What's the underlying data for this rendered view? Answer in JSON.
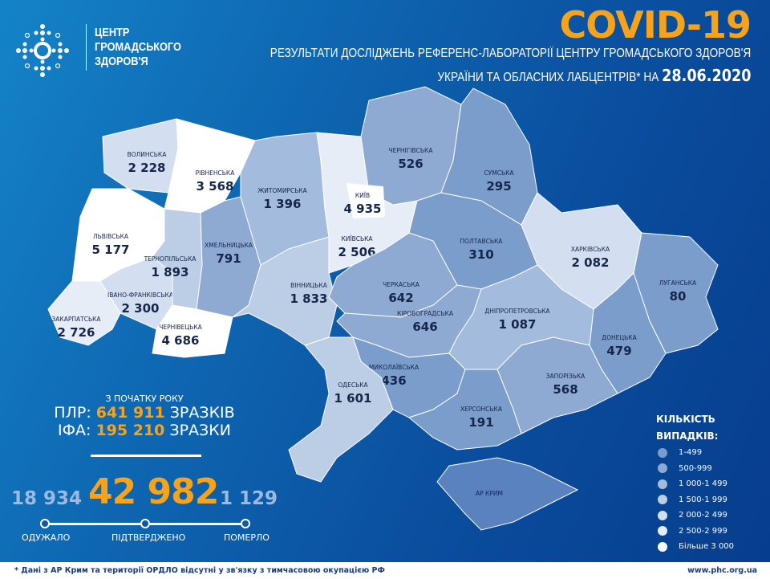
{
  "header": {
    "logo_text": [
      "ЦЕНТР",
      "ГРОМАДСЬКОГО",
      "ЗДОРОВ'Я"
    ],
    "title": "COVID-19",
    "subtitle_line1": "РЕЗУЛЬТАТИ ДОСЛІДЖЕНЬ РЕФЕРЕНС-ЛАБОРАТОРІЇ ЦЕНТРУ ГРОМАДСЬКОГО ЗДОРОВ'Я",
    "subtitle_line2": "УКРАЇНИ ТА ОБЛАСНИХ ЛАБЦЕНТРІВ* НА",
    "date": "28.06.2020"
  },
  "tests": {
    "since_label": "З ПОЧАТКУ РОКУ",
    "pcr_label": "ПЛР:",
    "pcr_value": "641 911",
    "pcr_unit": "ЗРАЗКІВ",
    "ifa_label": "ІФА:",
    "ifa_value": "195 210",
    "ifa_unit": "ЗРАЗКИ"
  },
  "totals": {
    "recovered": "18 934",
    "recovered_label": "ОДУЖАЛО",
    "confirmed": "42 982",
    "confirmed_label": "ПІДТВЕРДЖЕНО",
    "deaths": "1 129",
    "deaths_label": "ПОМЕРЛО"
  },
  "regions": [
    {
      "name": "ВОЛИНСЬКА",
      "value": "2 228"
    },
    {
      "name": "РІВНЕНСЬКА",
      "value": "3 568"
    },
    {
      "name": "ЛЬВІВСЬКА",
      "value": "5 177"
    },
    {
      "name": "ЗАКАРПАТСЬКА",
      "value": "2 726"
    },
    {
      "name": "ІВАНО-ФРАНКІВСЬКА",
      "value": "2 300"
    },
    {
      "name": "ТЕРНОПІЛЬСЬКА",
      "value": "1 893"
    },
    {
      "name": "ЧЕРНІВЕЦЬКА",
      "value": "4 686"
    },
    {
      "name": "ХМЕЛЬНИЦЬКА",
      "value": "791"
    },
    {
      "name": "ЖИТОМИРСЬКА",
      "value": "1 396"
    },
    {
      "name": "КИЇВСЬКА",
      "value": "2 506"
    },
    {
      "name": "ВІННИЦЬКА",
      "value": "1 833"
    },
    {
      "name": "ЧЕРНІГІВСЬКА",
      "value": "526"
    },
    {
      "name": "СУМСЬКА",
      "value": "295"
    },
    {
      "name": "ПОЛТАВСЬКА",
      "value": "310"
    },
    {
      "name": "ХАРКІВСЬКА",
      "value": "2 082"
    },
    {
      "name": "ЛУГАНСЬКА",
      "value": "80"
    },
    {
      "name": "ДОНЕЦЬКА",
      "value": "479"
    },
    {
      "name": "ЧЕРКАСЬКА",
      "value": "642"
    },
    {
      "name": "КІРОВОГРАДСЬКА",
      "value": "646"
    },
    {
      "name": "ДНІПРОПЕТРОВСЬКА",
      "value": "1 087"
    },
    {
      "name": "ЗАПОРІЗЬКА",
      "value": "568"
    },
    {
      "name": "МИКОЛАЇВСЬКА",
      "value": "436"
    },
    {
      "name": "ХЕРСОНСЬКА",
      "value": "191"
    },
    {
      "name": "ОДЕСЬКА",
      "value": "1 601"
    },
    {
      "name": "АР КРИМ",
      "value": null
    },
    {
      "name": "КИЇВ",
      "value": "4 935"
    }
  ],
  "legend": {
    "title_line1": "КІЛЬКІСТЬ",
    "title_line2": "ВИПАДКІВ:",
    "items": [
      {
        "label": "1-499",
        "color": "#7b9dcb"
      },
      {
        "label": "500-999",
        "color": "#8eaad2"
      },
      {
        "label": "1 000-1 499",
        "color": "#a3bbdc"
      },
      {
        "label": "1 500-1 999",
        "color": "#bccde6"
      },
      {
        "label": "2 000-2 499",
        "color": "#d3def0"
      },
      {
        "label": "2 500-2 999",
        "color": "#e6edf7"
      },
      {
        "label": "Більше 3 000",
        "color": "#ffffff"
      }
    ],
    "no_data_color": "#5a82bf"
  },
  "footer": {
    "note": "* Дані з АР Крим та території ОРДЛО відсутні у зв'язку з тимчасовою окупацією РФ",
    "url": "www.phc.org.ua"
  }
}
